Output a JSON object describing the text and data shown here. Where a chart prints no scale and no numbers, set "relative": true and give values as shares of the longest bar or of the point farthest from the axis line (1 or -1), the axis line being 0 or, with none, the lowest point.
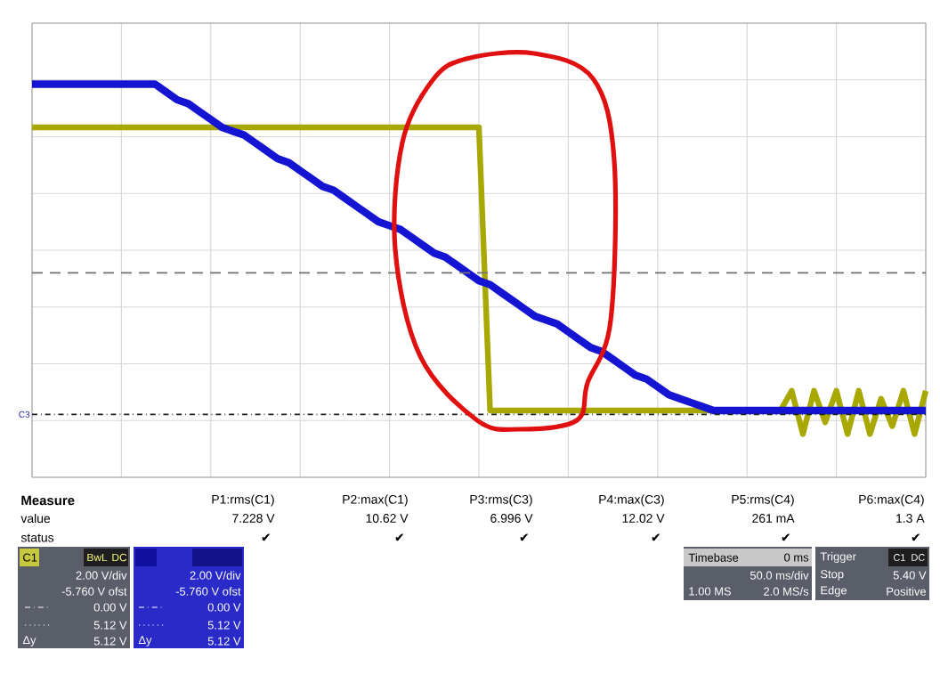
{
  "chart_data": {
    "type": "line",
    "relative": true,
    "grid": true,
    "categories": [
      null,
      null,
      null,
      null,
      null,
      null,
      null,
      null,
      null,
      null,
      null,
      null,
      null,
      null,
      null,
      null,
      null,
      null,
      null,
      null,
      null,
      null,
      null,
      null,
      null,
      null,
      null,
      null,
      null,
      null,
      null,
      null,
      null,
      null,
      null,
      null,
      null,
      null,
      null,
      null,
      null,
      null,
      null,
      null,
      null,
      null,
      null,
      null,
      null,
      null,
      null,
      null,
      null,
      null,
      null,
      null,
      null,
      null,
      null,
      null,
      null,
      null,
      null,
      null,
      null,
      null,
      null,
      null,
      null,
      null,
      null,
      null,
      null,
      null,
      null,
      null,
      null,
      null,
      null,
      null,
      null
    ],
    "series": [
      {
        "color": "#a8a800",
        "values": [
          0.89,
          0.89,
          0.89,
          0.89,
          0.89,
          0.89,
          0.89,
          0.89,
          0.89,
          0.89,
          0.89,
          0.89,
          0.89,
          0.89,
          0.89,
          0.89,
          0.89,
          0.89,
          0.89,
          0.89,
          0.89,
          0.89,
          0.89,
          0.89,
          0.89,
          0.89,
          0.89,
          0.89,
          0.89,
          0.89,
          0.89,
          0.89,
          0.89,
          0.89,
          0.89,
          0.89,
          0.89,
          0.89,
          0.89,
          0.89,
          0.89,
          0.17,
          0.17,
          0.17,
          0.17,
          0.17,
          0.17,
          0.17,
          0.17,
          0.17,
          0.17,
          0.17,
          0.17,
          0.17,
          0.17,
          0.17,
          0.17,
          0.17,
          0.17,
          0.17,
          0.17,
          0.17,
          0.17,
          0.17,
          0.17,
          0.17,
          0.17,
          0.17,
          0.22,
          0.11,
          0.22,
          0.14,
          0.22,
          0.11,
          0.22,
          0.11,
          0.2,
          0.13,
          0.22,
          0.11,
          0.22
        ]
      },
      {
        "color": "#1414d2",
        "values": [
          1.0,
          1.0,
          1.0,
          1.0,
          1.0,
          1.0,
          1.0,
          1.0,
          1.0,
          1.0,
          1.0,
          1.0,
          0.98,
          0.96,
          0.95,
          0.93,
          0.91,
          0.89,
          0.88,
          0.87,
          0.85,
          0.83,
          0.81,
          0.8,
          0.78,
          0.76,
          0.74,
          0.73,
          0.71,
          0.69,
          0.67,
          0.65,
          0.64,
          0.63,
          0.61,
          0.59,
          0.57,
          0.56,
          0.54,
          0.52,
          0.5,
          0.49,
          0.47,
          0.45,
          0.43,
          0.41,
          0.4,
          0.39,
          0.37,
          0.35,
          0.33,
          0.32,
          0.3,
          0.28,
          0.26,
          0.25,
          0.23,
          0.21,
          0.2,
          0.19,
          0.18,
          0.17,
          0.17,
          0.17,
          0.17,
          0.17,
          0.17,
          0.17,
          0.17,
          0.17,
          0.17,
          0.17,
          0.17,
          0.17,
          0.17,
          0.17,
          0.17,
          0.17,
          0.17,
          0.17,
          0.17
        ]
      }
    ],
    "ref_lines": [
      {
        "axis": "y",
        "value": 0.52,
        "line_style": "dashed",
        "color": "#707070"
      },
      {
        "axis": "y",
        "value": 0.16,
        "line_style": "dashdot",
        "color": "#202020",
        "label": "C3"
      }
    ],
    "annotations": [
      "Measure",
      "value",
      "status",
      "P1:rms(C1)",
      "7.228 V",
      "P2:max(C1)",
      "10.62 V",
      "P3:rms(C3)",
      "6.996 V",
      "P4:max(C3)",
      "12.02 V",
      "P5:rms(C4)",
      "261 mA",
      "P6:max(C4)",
      "1.3 A",
      "✔",
      "✔",
      "✔",
      "✔",
      "✔",
      "✔",
      "C1",
      "BwL",
      "DC",
      "2.00 V/div",
      "-5.760 V ofst",
      "0.00 V",
      "5.12 V",
      "Δy",
      "5.12 V",
      "2.00 V/div",
      "-5.760 V ofst",
      "0.00 V",
      "5.12 V",
      "Δy",
      "5.12 V",
      "Timebase",
      "0 ms",
      "50.0 ms/div",
      "1.00 MS",
      "2.0 MS/s",
      "Trigger",
      "C1",
      "DC",
      "Stop",
      "5.40 V",
      "Edge",
      "Positive"
    ]
  }
}
